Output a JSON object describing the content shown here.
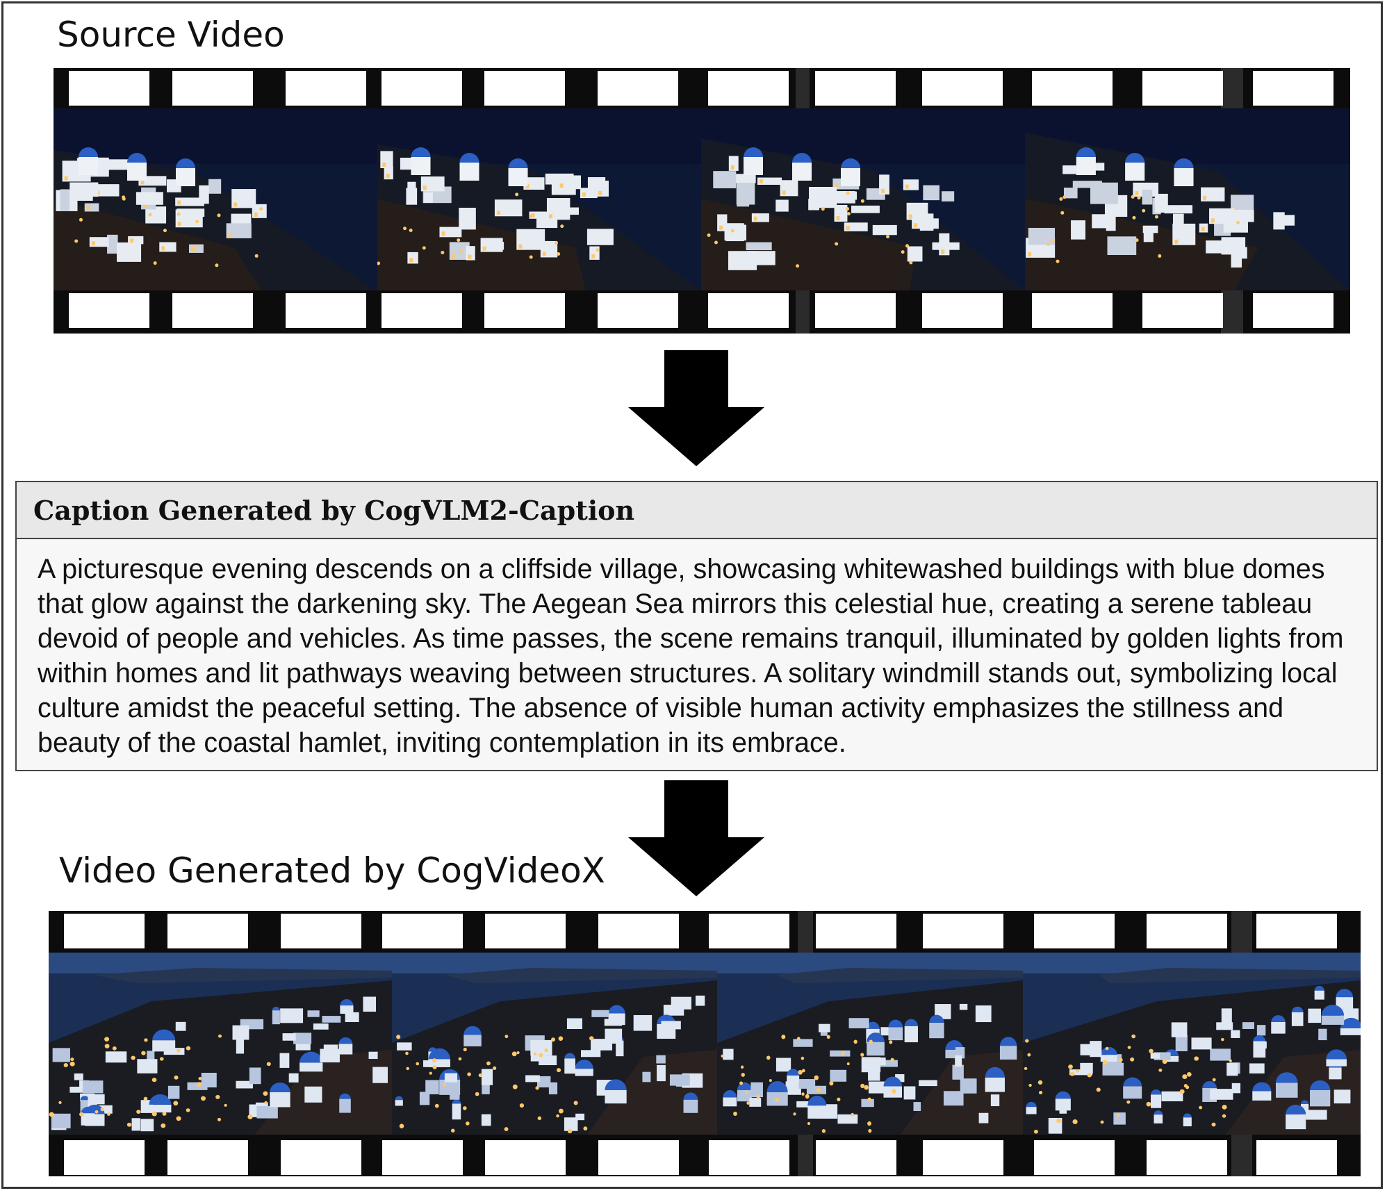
{
  "source_section": {
    "title": "Source Video",
    "frames": [
      {
        "scene": "source-frame-1"
      },
      {
        "scene": "source-frame-2"
      },
      {
        "scene": "source-frame-3"
      },
      {
        "scene": "source-frame-4"
      }
    ]
  },
  "caption_section": {
    "title": "Caption Generated by CogVLM2-Caption",
    "text": "A picturesque evening descends on a cliffside village, showcasing whitewashed buildings with blue domes that glow against the darkening sky. The Aegean Sea mirrors this celestial hue, creating a serene tableau devoid of people and vehicles. As time passes, the scene remains tranquil, illuminated by golden lights from within homes and lit pathways weaving between structures. A solitary windmill stands out, symbolizing local culture amidst the peaceful setting. The absence of visible human activity emphasizes the stillness and beauty of the coastal hamlet, inviting contemplation in its embrace."
  },
  "generated_section": {
    "title": "Video Generated by CogVideoX",
    "frames": [
      {
        "scene": "generated-frame-1"
      },
      {
        "scene": "generated-frame-2"
      },
      {
        "scene": "generated-frame-3"
      },
      {
        "scene": "generated-frame-4"
      }
    ]
  },
  "icons": {
    "arrow_1": "arrow-down-icon",
    "arrow_2": "arrow-down-icon"
  },
  "colors": {
    "film": "#0c0c0c",
    "source_sky": "#0d1835",
    "generated_sky": "#2a4a80",
    "dome_blue": "#2b5fc4",
    "light_gold": "#ffc86a"
  }
}
